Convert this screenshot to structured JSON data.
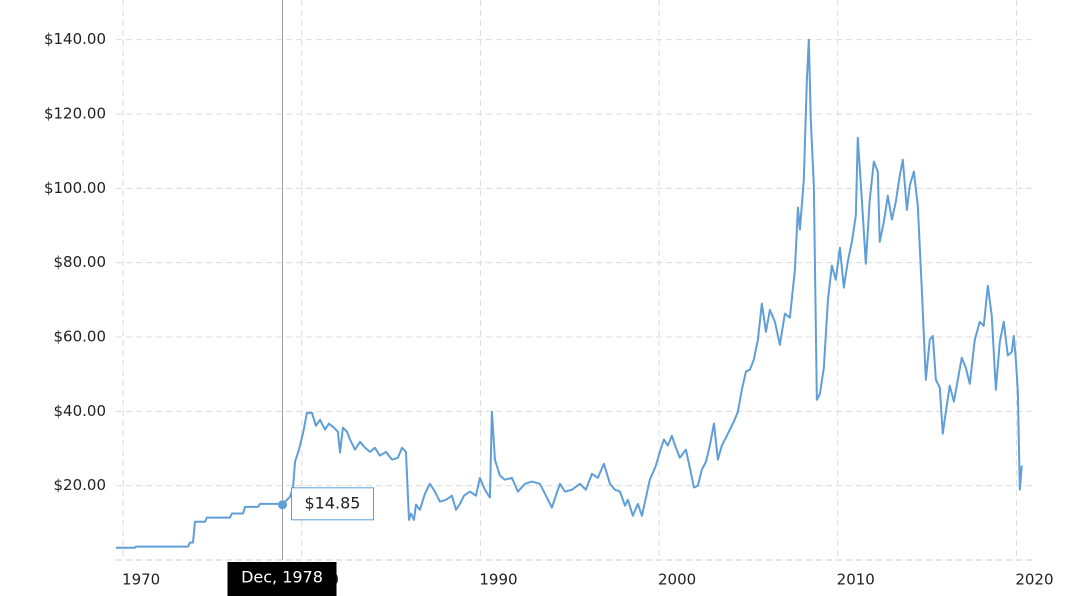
{
  "chart_data": {
    "type": "line",
    "color": "#5f9ed7",
    "grid": true,
    "xlim": [
      1969.6,
      2021.04
    ],
    "xticks": [
      1970,
      1980,
      1990,
      2000,
      2010,
      2020
    ],
    "ylim": [
      0,
      150
    ],
    "yticks": [
      {
        "value": 20,
        "label": "$20.00"
      },
      {
        "value": 40,
        "label": "$40.00"
      },
      {
        "value": 60,
        "label": "$60.00"
      },
      {
        "value": 80,
        "label": "$80.00"
      },
      {
        "value": 100,
        "label": "$100.00"
      },
      {
        "value": 120,
        "label": "$120.00"
      },
      {
        "value": 140,
        "label": "$140.00"
      }
    ],
    "x": [
      1969.6,
      1970.66,
      1970.72,
      1973.63,
      1973.74,
      1973.91,
      1974.02,
      1974.58,
      1974.69,
      1975.98,
      1976.09,
      1976.71,
      1976.82,
      1977.55,
      1977.66,
      1978.78,
      1978.95,
      1979.23,
      1979.34,
      1979.51,
      1979.62,
      1979.84,
      1980.07,
      1980.29,
      1980.57,
      1980.79,
      1981.02,
      1981.3,
      1981.52,
      1981.8,
      1982.02,
      1982.14,
      1982.3,
      1982.53,
      1982.7,
      1982.98,
      1983.26,
      1983.54,
      1983.82,
      1984.09,
      1984.37,
      1984.71,
      1985.05,
      1985.38,
      1985.61,
      1985.83,
      1986.0,
      1986.11,
      1986.28,
      1986.39,
      1986.61,
      1986.89,
      1987.17,
      1987.45,
      1987.73,
      1988.07,
      1988.4,
      1988.63,
      1988.85,
      1989.08,
      1989.41,
      1989.75,
      1989.97,
      1990.25,
      1990.53,
      1990.64,
      1990.81,
      1991.09,
      1991.37,
      1991.76,
      1992.1,
      1992.49,
      1992.88,
      1993.33,
      1993.78,
      1994.0,
      1994.22,
      1994.45,
      1994.73,
      1995.12,
      1995.57,
      1995.9,
      1996.24,
      1996.57,
      1996.91,
      1997.25,
      1997.53,
      1997.81,
      1998.09,
      1998.25,
      1998.53,
      1998.81,
      1999.04,
      1999.26,
      1999.48,
      1999.82,
      2000.04,
      2000.27,
      2000.49,
      2000.71,
      2000.94,
      2001.16,
      2001.5,
      2001.72,
      2001.95,
      2002.17,
      2002.39,
      2002.62,
      2002.84,
      2003.07,
      2003.29,
      2003.51,
      2003.74,
      2003.96,
      2004.18,
      2004.41,
      2004.63,
      2004.86,
      2005.08,
      2005.3,
      2005.53,
      2005.75,
      2005.98,
      2006.2,
      2006.48,
      2006.76,
      2007.04,
      2007.32,
      2007.6,
      2007.77,
      2007.88,
      2008.1,
      2008.27,
      2008.38,
      2008.49,
      2008.66,
      2008.83,
      2009.0,
      2009.22,
      2009.45,
      2009.67,
      2009.89,
      2010.12,
      2010.34,
      2010.56,
      2010.79,
      2011.01,
      2011.12,
      2011.35,
      2011.57,
      2011.79,
      2012.02,
      2012.24,
      2012.35,
      2012.58,
      2012.8,
      2013.03,
      2013.25,
      2013.47,
      2013.64,
      2013.87,
      2014.03,
      2014.26,
      2014.48,
      2014.71,
      2014.93,
      2015.15,
      2015.32,
      2015.49,
      2015.71,
      2015.88,
      2016.05,
      2016.27,
      2016.5,
      2016.72,
      2016.94,
      2017.17,
      2017.39,
      2017.67,
      2017.95,
      2018.17,
      2018.4,
      2018.62,
      2018.85,
      2019.07,
      2019.29,
      2019.52,
      2019.74,
      2019.85,
      2019.97,
      2020.08,
      2020.19,
      2020.3
    ],
    "values": [
      3.3,
      3.3,
      3.6,
      3.6,
      4.7,
      4.7,
      10.3,
      10.3,
      11.4,
      11.4,
      12.5,
      12.5,
      14.3,
      14.3,
      15.1,
      15.1,
      15.1,
      16.5,
      17.0,
      19.5,
      26.4,
      29.7,
      34.2,
      39.6,
      39.6,
      36.1,
      37.7,
      35.1,
      36.7,
      35.6,
      34.5,
      28.9,
      35.6,
      34.5,
      32.4,
      29.7,
      31.8,
      30.2,
      29.1,
      30.2,
      28.1,
      29.1,
      27.0,
      27.5,
      30.2,
      29.1,
      10.8,
      12.5,
      10.8,
      14.9,
      13.5,
      17.8,
      20.5,
      18.4,
      15.7,
      16.2,
      17.3,
      13.5,
      15.1,
      17.3,
      18.4,
      17.3,
      22.1,
      18.9,
      16.8,
      39.9,
      27.0,
      22.7,
      21.6,
      22.1,
      18.4,
      20.5,
      21.1,
      20.5,
      16.2,
      14.1,
      17.3,
      20.5,
      18.4,
      18.9,
      20.5,
      18.9,
      23.2,
      22.1,
      25.9,
      20.5,
      18.9,
      18.4,
      14.6,
      16.2,
      11.9,
      15.1,
      11.9,
      16.8,
      21.6,
      25.4,
      29.1,
      32.4,
      30.8,
      33.4,
      30.2,
      27.5,
      29.7,
      24.8,
      19.5,
      20.0,
      24.3,
      26.4,
      30.8,
      36.7,
      27.0,
      30.8,
      32.9,
      35.1,
      37.2,
      39.9,
      45.8,
      50.7,
      51.2,
      53.9,
      59.3,
      69.0,
      61.4,
      67.3,
      64.1,
      57.9,
      66.3,
      65.2,
      78.1,
      94.8,
      88.9,
      102.3,
      129.2,
      140.0,
      118.5,
      100.7,
      43.1,
      44.7,
      51.7,
      70.0,
      79.2,
      75.4,
      84.0,
      73.3,
      80.3,
      85.6,
      92.6,
      113.6,
      96.9,
      79.7,
      96.9,
      107.2,
      104.5,
      85.6,
      91.0,
      98.0,
      91.6,
      96.4,
      103.4,
      107.7,
      94.2,
      100.7,
      104.5,
      95.3,
      72.2,
      48.5,
      59.3,
      60.3,
      48.5,
      46.4,
      34.0,
      39.9,
      46.9,
      42.6,
      48.5,
      54.4,
      51.7,
      47.4,
      59.3,
      64.1,
      63.0,
      73.8,
      65.7,
      45.8,
      58.7,
      64.1,
      55.0,
      56.0,
      60.3,
      53.9,
      45.3,
      18.9,
      25.4
    ],
    "tooltip": {
      "x": 1978.92,
      "x_label": "Dec, 1978",
      "value": 14.85,
      "value_label": "$14.85"
    }
  }
}
